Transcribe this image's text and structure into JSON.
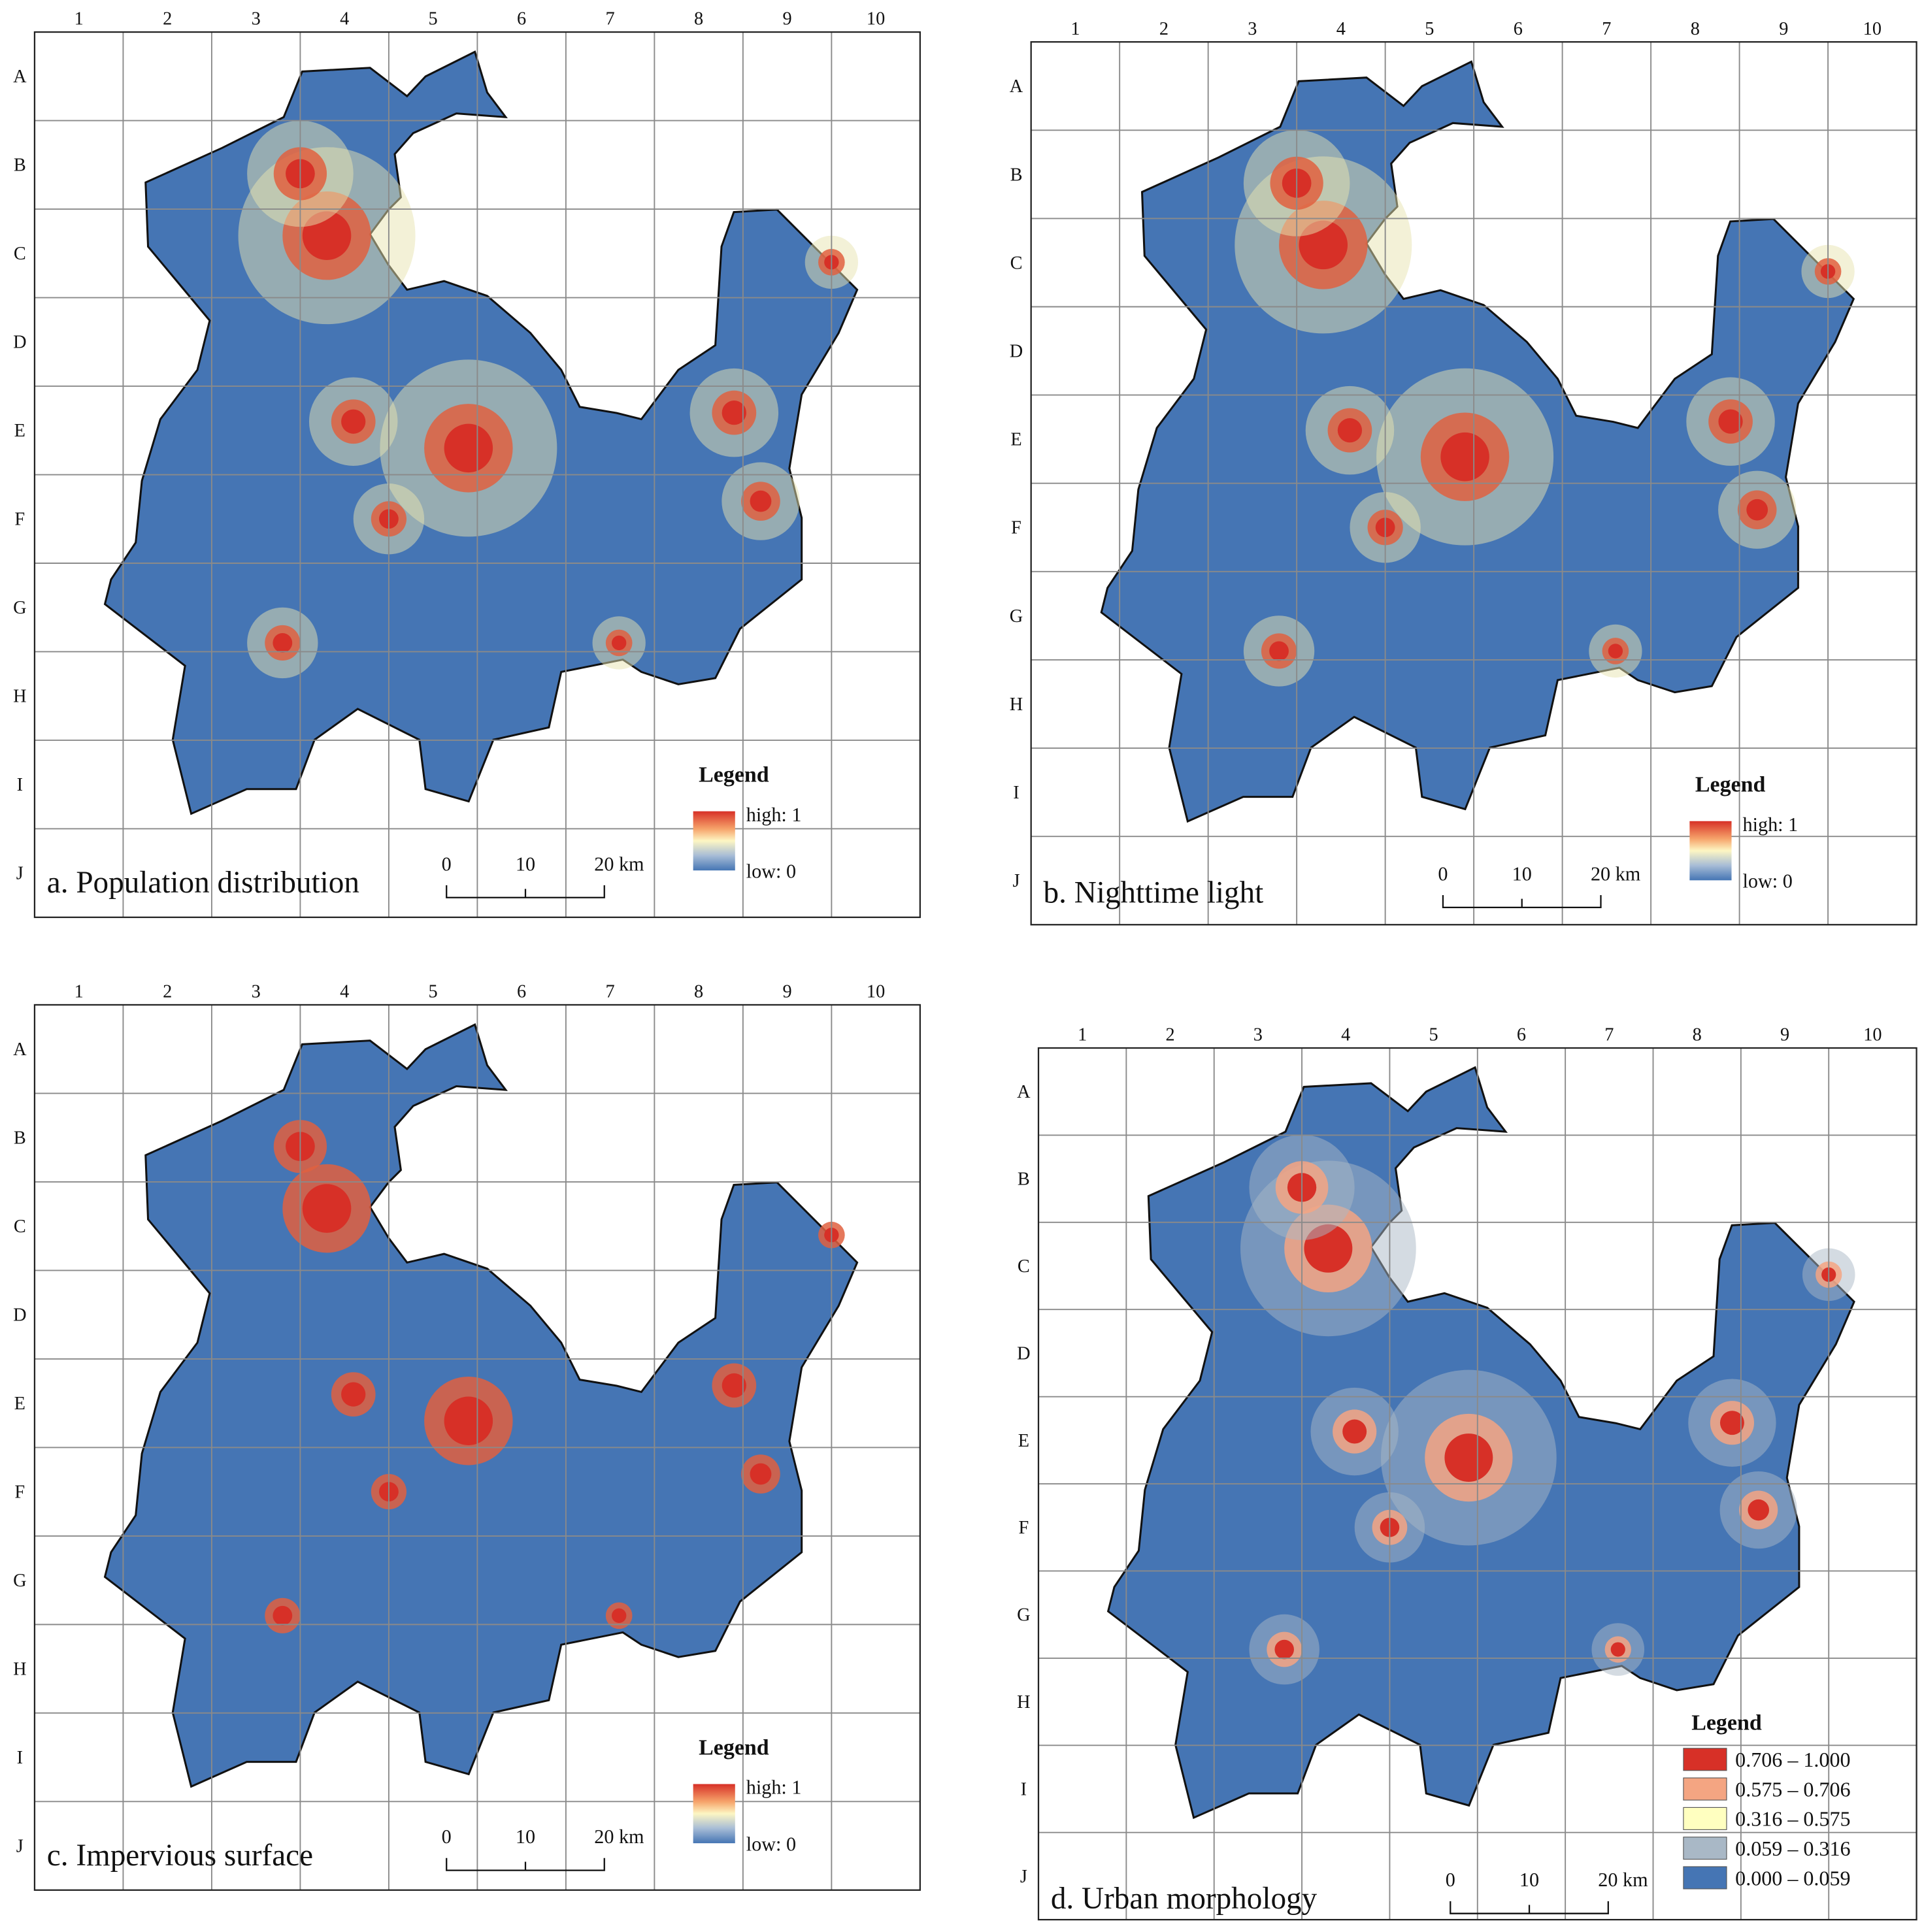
{
  "panels": [
    {
      "title": "a. Population distribution",
      "columns": [
        "1",
        "2",
        "3",
        "4",
        "5",
        "6",
        "7",
        "8",
        "9",
        "10"
      ],
      "rows": [
        "A",
        "B",
        "C",
        "D",
        "E",
        "F",
        "G",
        "H",
        "I",
        "J"
      ],
      "legend": {
        "title": "Legend",
        "high": "high: 1",
        "low": "low: 0"
      },
      "scale": [
        "0",
        "10",
        "20 km"
      ]
    },
    {
      "title": "b. Nighttime light",
      "columns": [
        "1",
        "2",
        "3",
        "4",
        "5",
        "6",
        "7",
        "8",
        "9",
        "10"
      ],
      "rows": [
        "A",
        "B",
        "C",
        "D",
        "E",
        "F",
        "G",
        "H",
        "I",
        "J"
      ],
      "legend": {
        "title": "Legend",
        "high": "high: 1",
        "low": "low: 0"
      },
      "scale": [
        "0",
        "10",
        "20 km"
      ]
    },
    {
      "title": "c. Impervious surface",
      "columns": [
        "1",
        "2",
        "3",
        "4",
        "5",
        "6",
        "7",
        "8",
        "9",
        "10"
      ],
      "rows": [
        "A",
        "B",
        "C",
        "D",
        "E",
        "F",
        "G",
        "H",
        "I",
        "J"
      ],
      "legend": {
        "title": "Legend",
        "high": "high: 1",
        "low": "low: 0"
      },
      "scale": [
        "0",
        "10",
        "20 km"
      ]
    },
    {
      "title": "d. Urban morphology",
      "columns": [
        "1",
        "2",
        "3",
        "4",
        "5",
        "6",
        "7",
        "8",
        "9",
        "10"
      ],
      "rows": [
        "A",
        "B",
        "C",
        "D",
        "E",
        "F",
        "G",
        "H",
        "I",
        "J"
      ],
      "legend": {
        "title": "Legend",
        "classes": [
          "0.706 – 1.000",
          "0.575 – 0.706",
          "0.316 – 0.575",
          "0.059 – 0.316",
          "0.000 – 0.059"
        ]
      },
      "scale": [
        "0",
        "10",
        "20 km"
      ]
    }
  ]
}
